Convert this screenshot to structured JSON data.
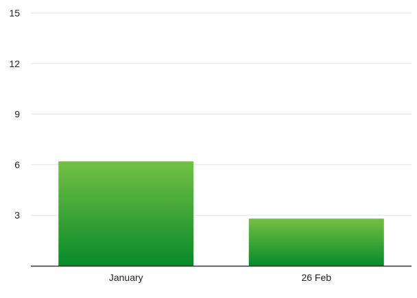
{
  "chart_data": {
    "type": "bar",
    "title": "",
    "xlabel": "",
    "ylabel": "",
    "categories": [
      "January",
      "26 Feb"
    ],
    "values": [
      6.2,
      2.8
    ],
    "ylim": [
      0,
      15
    ],
    "yticks": [
      3,
      6,
      9,
      12,
      15
    ],
    "ytick_labels": [
      "3",
      "6",
      "9",
      "12",
      "15"
    ],
    "grid": true,
    "legend": "none",
    "colors": {
      "bar_top": "#74c043",
      "bar_bottom": "#078a2a",
      "grid": "#e6e6e6",
      "axis": "#333333",
      "text": "#222222"
    }
  }
}
